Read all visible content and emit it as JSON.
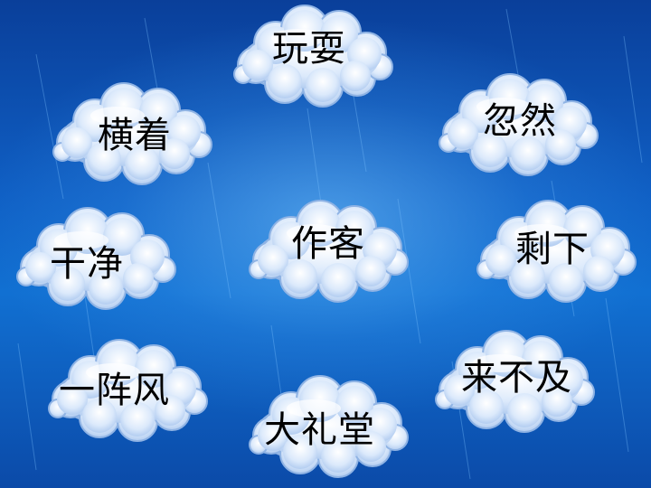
{
  "slide": {
    "background_color": "#0f5fc4",
    "cloud_color": "#cfe3fb"
  },
  "words": [
    {
      "text": "玩耍"
    },
    {
      "text": "横着"
    },
    {
      "text": "忽然"
    },
    {
      "text": "干净"
    },
    {
      "text": "作客"
    },
    {
      "text": "剩下"
    },
    {
      "text": "一阵风"
    },
    {
      "text": "大礼堂"
    },
    {
      "text": "来不及"
    }
  ]
}
